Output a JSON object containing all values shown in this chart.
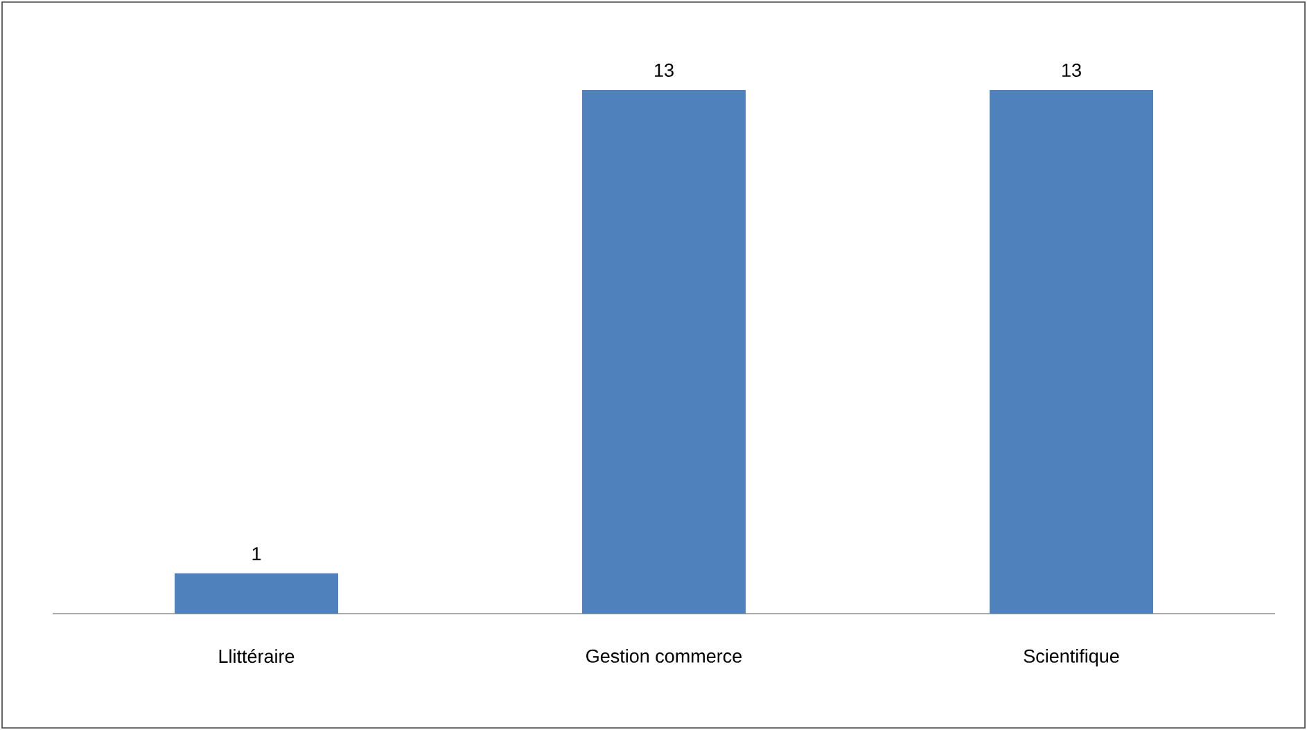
{
  "chart_data": {
    "type": "bar",
    "categories": [
      "Llittéraire",
      "Gestion commerce",
      "Scientifique"
    ],
    "values": [
      1,
      13,
      13
    ],
    "color": "#4f81bd",
    "data_labels": true,
    "tick_labels": "x"
  }
}
